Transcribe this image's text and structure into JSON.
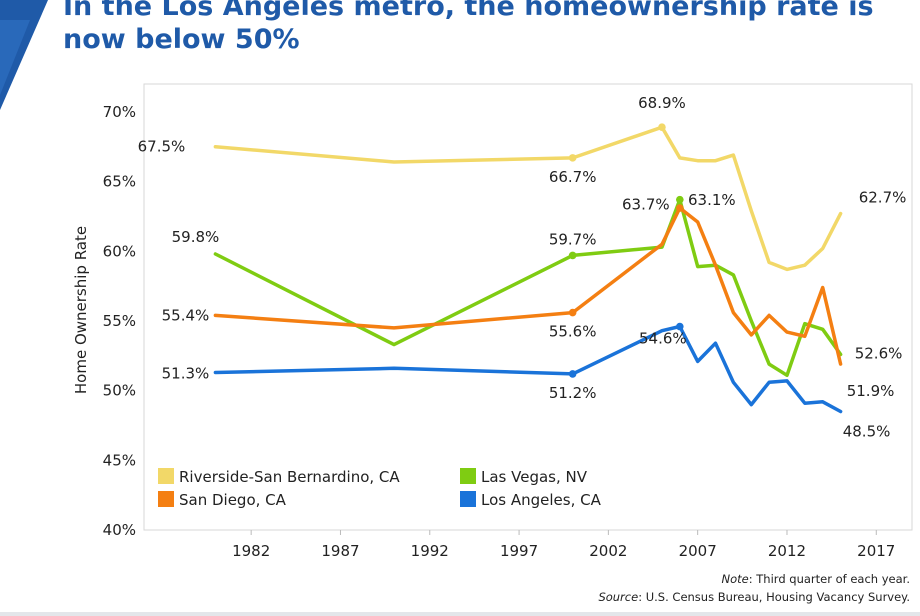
{
  "title": "In the Los Angeles metro, the homeownership rate is now below 50%",
  "note": {
    "label": "Note",
    "text": ": Third quarter of each year."
  },
  "source": {
    "label": "Source",
    "text": ": U.S. Census Bureau, Housing Vacancy Survey."
  },
  "colors": {
    "title": "#1f5aa8",
    "logo": "#1f5aa8"
  },
  "chart_data": {
    "type": "line",
    "title": "In the Los Angeles metro, the homeownership rate is now below 50%",
    "xlabel": "",
    "ylabel": "Home Ownership Rate",
    "xlim": [
      1976,
      2019
    ],
    "ylim": [
      40,
      72
    ],
    "x_ticks": [
      1982,
      1987,
      1992,
      1997,
      2002,
      2007,
      2012,
      2017
    ],
    "y_ticks": [
      40,
      45,
      50,
      55,
      60,
      65,
      70
    ],
    "y_tick_labels": [
      "40%",
      "45%",
      "50%",
      "55%",
      "60%",
      "65%",
      "70%"
    ],
    "grid": false,
    "legend_position": "bottom-left",
    "series": [
      {
        "name": "Riverside-San Bernardino, CA",
        "color": "#f2d868",
        "points": [
          [
            1980,
            67.5
          ],
          [
            1990,
            66.4
          ],
          [
            2000,
            66.7
          ],
          [
            2005,
            68.9
          ],
          [
            2006,
            66.7
          ],
          [
            2007,
            66.5
          ],
          [
            2008,
            66.5
          ],
          [
            2009,
            66.9
          ],
          [
            2010,
            62.9
          ],
          [
            2011,
            59.2
          ],
          [
            2012,
            58.7
          ],
          [
            2013,
            59.0
          ],
          [
            2014,
            60.2
          ],
          [
            2015,
            62.7
          ]
        ],
        "labels": [
          {
            "x": 1980,
            "text": "67.5%"
          },
          {
            "x": 2000,
            "text": "66.7%"
          },
          {
            "x": 2005,
            "text": "68.9%"
          },
          {
            "x": 2015,
            "text": "62.7%"
          }
        ]
      },
      {
        "name": "Las Vegas, NV",
        "color": "#7fcc12",
        "points": [
          [
            1980,
            59.8
          ],
          [
            1990,
            53.3
          ],
          [
            2000,
            59.7
          ],
          [
            2005,
            60.3
          ],
          [
            2006,
            63.7
          ],
          [
            2007,
            58.9
          ],
          [
            2008,
            59.0
          ],
          [
            2009,
            58.3
          ],
          [
            2010,
            55.0
          ],
          [
            2011,
            51.9
          ],
          [
            2012,
            51.1
          ],
          [
            2013,
            54.8
          ],
          [
            2014,
            54.4
          ],
          [
            2015,
            52.6
          ]
        ],
        "labels": [
          {
            "x": 1980,
            "text": "59.8%"
          },
          {
            "x": 2000,
            "text": "59.7%"
          },
          {
            "x": 2006,
            "text": "63.7%"
          },
          {
            "x": 2015,
            "text": "52.6%"
          }
        ]
      },
      {
        "name": "San Diego, CA",
        "color": "#f47f12",
        "points": [
          [
            1980,
            55.4
          ],
          [
            1990,
            54.5
          ],
          [
            2000,
            55.6
          ],
          [
            2005,
            60.5
          ],
          [
            2006,
            63.1
          ],
          [
            2007,
            62.1
          ],
          [
            2008,
            59.0
          ],
          [
            2009,
            55.6
          ],
          [
            2010,
            54.0
          ],
          [
            2011,
            55.4
          ],
          [
            2012,
            54.2
          ],
          [
            2013,
            53.9
          ],
          [
            2014,
            57.4
          ],
          [
            2015,
            51.9
          ]
        ],
        "labels": [
          {
            "x": 1980,
            "text": "55.4%"
          },
          {
            "x": 2000,
            "text": "55.6%"
          },
          {
            "x": 2006,
            "text": "63.1%"
          },
          {
            "x": 2015,
            "text": "51.9%"
          }
        ]
      },
      {
        "name": "Los Angeles, CA",
        "color": "#1a73d9",
        "points": [
          [
            1980,
            51.3
          ],
          [
            1990,
            51.6
          ],
          [
            2000,
            51.2
          ],
          [
            2005,
            54.3
          ],
          [
            2006,
            54.6
          ],
          [
            2007,
            52.1
          ],
          [
            2008,
            53.4
          ],
          [
            2009,
            50.6
          ],
          [
            2010,
            49.0
          ],
          [
            2011,
            50.6
          ],
          [
            2012,
            50.7
          ],
          [
            2013,
            49.1
          ],
          [
            2014,
            49.2
          ],
          [
            2015,
            48.5
          ]
        ],
        "labels": [
          {
            "x": 1980,
            "text": "51.3%"
          },
          {
            "x": 2000,
            "text": "51.2%"
          },
          {
            "x": 2006,
            "text": "54.6%"
          },
          {
            "x": 2015,
            "text": "48.5%"
          }
        ]
      }
    ],
    "legend_order": [
      "Riverside-San Bernardino, CA",
      "Las Vegas, NV",
      "San Diego, CA",
      "Los Angeles, CA"
    ]
  }
}
